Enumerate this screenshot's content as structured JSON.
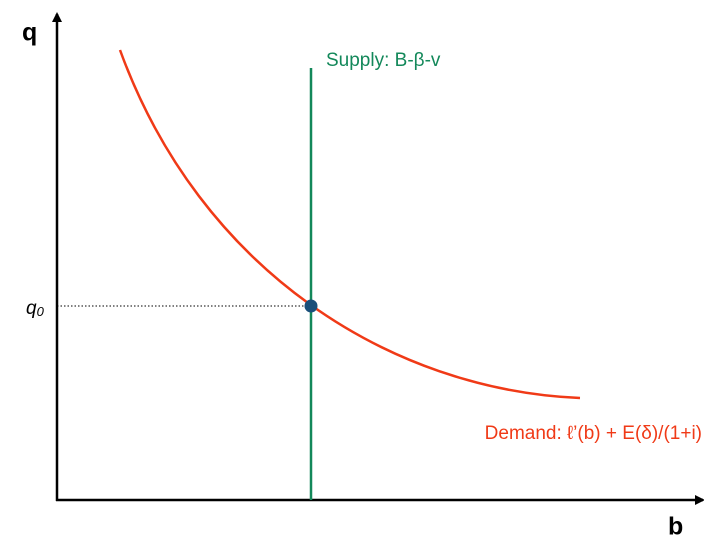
{
  "axes": {
    "y_label": "q",
    "x_label": "b"
  },
  "equilibrium": {
    "label": "q",
    "subscript": "0"
  },
  "supply": {
    "label": "Supply: B-β-v"
  },
  "demand": {
    "label": "Demand: ℓ’(b) + E(δ)/(1+i)"
  }
}
